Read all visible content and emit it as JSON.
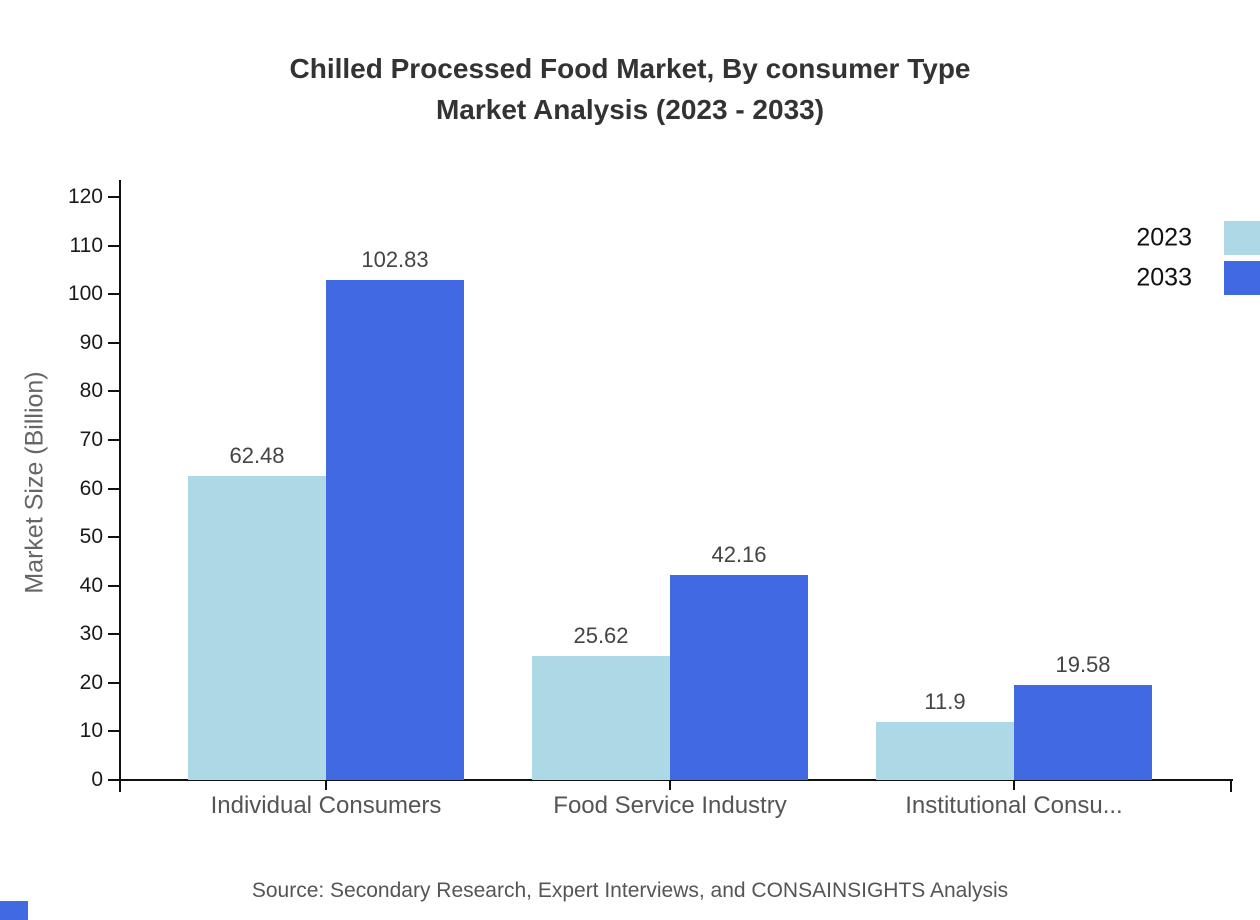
{
  "chart_data": {
    "type": "bar",
    "title": "Chilled Processed Food Market, By consumer Type",
    "subtitle": "Market Analysis (2023 - 2033)",
    "categories": [
      "Individual Consumers",
      "Food Service Industry",
      "Institutional Consu..."
    ],
    "series": [
      {
        "name": "2023",
        "color": "#ADD8E6",
        "values": [
          62.48,
          25.62,
          11.9
        ]
      },
      {
        "name": "2033",
        "color": "#4169E1",
        "values": [
          102.83,
          42.16,
          19.58
        ]
      }
    ],
    "xlabel": "",
    "ylabel": "Market Size (Billion)",
    "ylim": [
      0,
      120
    ],
    "ytick_step": 10,
    "ytick_labels": [
      "0",
      "10",
      "20",
      "30",
      "40",
      "50",
      "60",
      "70",
      "80",
      "90",
      "100",
      "110",
      "120"
    ],
    "grid": false,
    "legend_position": "top-right",
    "bar_value_labels": [
      "62.48",
      "102.83",
      "25.62",
      "42.16",
      "11.9",
      "19.58"
    ]
  },
  "footer": {
    "source": "Source: Secondary Research, Expert Interviews, and CONSAINSIGHTS Analysis"
  },
  "colors": {
    "series_2023": "#ADD8E6",
    "series_2033": "#4169E1",
    "title_text": "#333333",
    "axis_line": "#111111",
    "tick_label": "#1a1a1a",
    "value_label": "#444444",
    "category_label": "#555555",
    "axis_title": "#666666",
    "legend_text": "#111111",
    "source_text": "#555555",
    "background": "#ffffff",
    "brand_mark": "#4169E1"
  }
}
